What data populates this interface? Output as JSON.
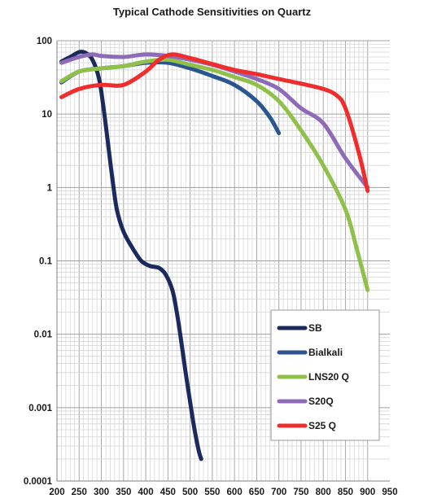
{
  "chart_data": {
    "type": "line",
    "title": "Typical Cathode Sensitivities on Quartz",
    "xlabel": "",
    "ylabel": "",
    "x_scale": "linear",
    "y_scale": "log",
    "xlim": [
      200,
      950
    ],
    "ylim": [
      0.0001,
      100
    ],
    "grid": true,
    "legend_position": "lower-right",
    "x_ticks": [
      "200",
      "250",
      "300",
      "350",
      "400",
      "450",
      "500",
      "550",
      "600",
      "650",
      "700",
      "750",
      "800",
      "850",
      "900",
      "950"
    ],
    "y_ticks": [
      "0.0001",
      "0.001",
      "0.01",
      "0.1",
      "1",
      "10",
      "100"
    ],
    "series": [
      {
        "name": "SB",
        "color": "#1b2a5c",
        "points": [
          [
            210,
            52
          ],
          [
            230,
            60
          ],
          [
            250,
            70
          ],
          [
            265,
            68
          ],
          [
            280,
            55
          ],
          [
            295,
            30
          ],
          [
            305,
            12
          ],
          [
            315,
            4
          ],
          [
            325,
            1.3
          ],
          [
            335,
            0.5
          ],
          [
            350,
            0.25
          ],
          [
            370,
            0.15
          ],
          [
            390,
            0.1
          ],
          [
            410,
            0.085
          ],
          [
            430,
            0.08
          ],
          [
            445,
            0.065
          ],
          [
            460,
            0.04
          ],
          [
            470,
            0.02
          ],
          [
            480,
            0.008
          ],
          [
            490,
            0.003
          ],
          [
            500,
            0.0012
          ],
          [
            510,
            0.0005
          ],
          [
            520,
            0.00025
          ],
          [
            525,
            0.0002
          ]
        ]
      },
      {
        "name": "Bialkali",
        "color": "#2b5590",
        "points": [
          [
            210,
            27
          ],
          [
            250,
            38
          ],
          [
            300,
            42
          ],
          [
            350,
            45
          ],
          [
            400,
            50
          ],
          [
            450,
            50
          ],
          [
            500,
            42
          ],
          [
            550,
            33
          ],
          [
            600,
            25
          ],
          [
            650,
            15
          ],
          [
            680,
            9
          ],
          [
            700,
            5.5
          ]
        ]
      },
      {
        "name": "LNS20 Q",
        "color": "#8fc04a",
        "points": [
          [
            210,
            28
          ],
          [
            250,
            38
          ],
          [
            300,
            42
          ],
          [
            350,
            45
          ],
          [
            400,
            52
          ],
          [
            450,
            55
          ],
          [
            500,
            47
          ],
          [
            550,
            40
          ],
          [
            600,
            32
          ],
          [
            650,
            25
          ],
          [
            700,
            15
          ],
          [
            750,
            6
          ],
          [
            800,
            2
          ],
          [
            850,
            0.5
          ],
          [
            875,
            0.15
          ],
          [
            900,
            0.04
          ]
        ]
      },
      {
        "name": "S20Q",
        "color": "#8e6bb8",
        "points": [
          [
            210,
            50
          ],
          [
            250,
            60
          ],
          [
            280,
            65
          ],
          [
            300,
            62
          ],
          [
            350,
            60
          ],
          [
            400,
            65
          ],
          [
            450,
            62
          ],
          [
            500,
            55
          ],
          [
            550,
            47
          ],
          [
            600,
            38
          ],
          [
            650,
            30
          ],
          [
            700,
            22
          ],
          [
            750,
            12
          ],
          [
            800,
            7.5
          ],
          [
            850,
            2.5
          ],
          [
            900,
            1.0
          ]
        ]
      },
      {
        "name": "S25 Q",
        "color": "#ef2d2d",
        "points": [
          [
            210,
            17
          ],
          [
            250,
            22
          ],
          [
            300,
            25
          ],
          [
            350,
            25
          ],
          [
            400,
            38
          ],
          [
            430,
            55
          ],
          [
            460,
            65
          ],
          [
            500,
            58
          ],
          [
            550,
            48
          ],
          [
            600,
            40
          ],
          [
            650,
            35
          ],
          [
            700,
            30
          ],
          [
            750,
            26
          ],
          [
            800,
            22
          ],
          [
            830,
            18
          ],
          [
            850,
            12
          ],
          [
            880,
            3
          ],
          [
            900,
            0.9
          ]
        ]
      }
    ]
  }
}
